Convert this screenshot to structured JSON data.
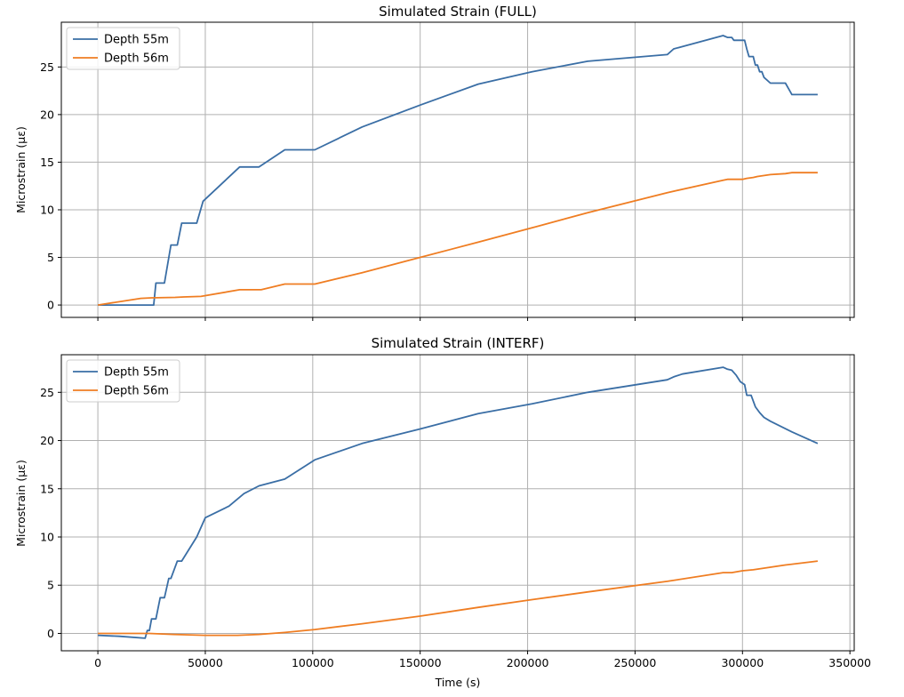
{
  "chart_data": [
    {
      "type": "line",
      "title": "Simulated Strain (FULL)",
      "xlabel": "",
      "ylabel": "Microstrain (με)",
      "xlim": [
        -17000,
        352000
      ],
      "ylim": [
        -1.3,
        29.7
      ],
      "xticks": [
        0,
        50000,
        100000,
        150000,
        200000,
        250000,
        300000,
        350000
      ],
      "yticks": [
        0,
        5,
        10,
        15,
        20,
        25
      ],
      "ytick_labels": [
        "0",
        "5",
        "10",
        "15",
        "20",
        "25"
      ],
      "xtick_labels": [],
      "grid": true,
      "legend": "top-left",
      "series": [
        {
          "name": "Depth 55m",
          "color": "#3a6ea5",
          "points": [
            [
              0,
              0
            ],
            [
              25000,
              0
            ],
            [
              26000,
              0
            ],
            [
              27000,
              2.3
            ],
            [
              31000,
              2.3
            ],
            [
              34000,
              6.3
            ],
            [
              37000,
              6.3
            ],
            [
              39000,
              8.6
            ],
            [
              46000,
              8.6
            ],
            [
              49000,
              10.9
            ],
            [
              66000,
              14.5
            ],
            [
              75000,
              14.5
            ],
            [
              87000,
              16.3
            ],
            [
              101000,
              16.3
            ],
            [
              123000,
              18.7
            ],
            [
              150000,
              21
            ],
            [
              177000,
              23.2
            ],
            [
              202000,
              24.5
            ],
            [
              228000,
              25.6
            ],
            [
              265000,
              26.3
            ],
            [
              268000,
              26.9
            ],
            [
              291000,
              28.3
            ],
            [
              293000,
              28.1
            ],
            [
              295000,
              28.1
            ],
            [
              296000,
              27.8
            ],
            [
              301000,
              27.8
            ],
            [
              302000,
              26.9
            ],
            [
              303000,
              26.1
            ],
            [
              305000,
              26.1
            ],
            [
              306000,
              25.2
            ],
            [
              307000,
              25.2
            ],
            [
              308000,
              24.5
            ],
            [
              309000,
              24.5
            ],
            [
              310000,
              23.9
            ],
            [
              313000,
              23.3
            ],
            [
              320000,
              23.3
            ],
            [
              323000,
              22.1
            ],
            [
              335000,
              22.1
            ]
          ]
        },
        {
          "name": "Depth 56m",
          "color": "#ef7d22",
          "points": [
            [
              0,
              0
            ],
            [
              20000,
              0.7
            ],
            [
              25000,
              0.75
            ],
            [
              36000,
              0.8
            ],
            [
              40000,
              0.85
            ],
            [
              48000,
              0.9
            ],
            [
              66000,
              1.6
            ],
            [
              76000,
              1.6
            ],
            [
              87000,
              2.2
            ],
            [
              101000,
              2.2
            ],
            [
              123000,
              3.4
            ],
            [
              150000,
              5
            ],
            [
              177000,
              6.6
            ],
            [
              202000,
              8.1
            ],
            [
              228000,
              9.7
            ],
            [
              265000,
              11.8
            ],
            [
              291000,
              13.1
            ],
            [
              293000,
              13.2
            ],
            [
              300000,
              13.2
            ],
            [
              302000,
              13.3
            ],
            [
              305000,
              13.4
            ],
            [
              307000,
              13.5
            ],
            [
              313000,
              13.7
            ],
            [
              320000,
              13.8
            ],
            [
              323000,
              13.9
            ],
            [
              335000,
              13.9
            ]
          ]
        }
      ]
    },
    {
      "type": "line",
      "title": "Simulated Strain (INTERF)",
      "xlabel": "Time (s)",
      "ylabel": "Microstrain (με)",
      "xlim": [
        -17000,
        352000
      ],
      "ylim": [
        -1.8,
        28.9
      ],
      "xticks": [
        0,
        50000,
        100000,
        150000,
        200000,
        250000,
        300000,
        350000
      ],
      "xtick_labels": [
        "0",
        "50000",
        "100000",
        "150000",
        "200000",
        "250000",
        "300000",
        "350000"
      ],
      "yticks": [
        0,
        5,
        10,
        15,
        20,
        25
      ],
      "ytick_labels": [
        "0",
        "5",
        "10",
        "15",
        "20",
        "25"
      ],
      "grid": true,
      "legend": "top-left",
      "series": [
        {
          "name": "Depth 55m",
          "color": "#3a6ea5",
          "points": [
            [
              0,
              -0.2
            ],
            [
              10000,
              -0.3
            ],
            [
              22000,
              -0.5
            ],
            [
              23000,
              0.3
            ],
            [
              24000,
              0.3
            ],
            [
              25000,
              1.5
            ],
            [
              27000,
              1.5
            ],
            [
              29000,
              3.7
            ],
            [
              31000,
              3.7
            ],
            [
              33000,
              5.7
            ],
            [
              34000,
              5.7
            ],
            [
              37000,
              7.5
            ],
            [
              39000,
              7.5
            ],
            [
              46000,
              10
            ],
            [
              50000,
              12
            ],
            [
              61000,
              13.2
            ],
            [
              68000,
              14.5
            ],
            [
              75000,
              15.3
            ],
            [
              87000,
              16
            ],
            [
              101000,
              18
            ],
            [
              123000,
              19.7
            ],
            [
              150000,
              21.2
            ],
            [
              177000,
              22.8
            ],
            [
              202000,
              23.8
            ],
            [
              228000,
              25
            ],
            [
              265000,
              26.3
            ],
            [
              268000,
              26.6
            ],
            [
              272000,
              26.9
            ],
            [
              291000,
              27.6
            ],
            [
              293000,
              27.4
            ],
            [
              295000,
              27.3
            ],
            [
              297000,
              26.8
            ],
            [
              299000,
              26.1
            ],
            [
              301000,
              25.8
            ],
            [
              302000,
              24.7
            ],
            [
              304000,
              24.7
            ],
            [
              306000,
              23.5
            ],
            [
              308000,
              22.9
            ],
            [
              310000,
              22.4
            ],
            [
              313000,
              22
            ],
            [
              323000,
              20.9
            ],
            [
              335000,
              19.7
            ]
          ]
        },
        {
          "name": "Depth 56m",
          "color": "#ef7d22",
          "points": [
            [
              0,
              0
            ],
            [
              24000,
              0
            ],
            [
              35000,
              -0.1
            ],
            [
              50000,
              -0.2
            ],
            [
              65000,
              -0.2
            ],
            [
              75000,
              -0.1
            ],
            [
              87000,
              0.1
            ],
            [
              101000,
              0.4
            ],
            [
              123000,
              1
            ],
            [
              150000,
              1.8
            ],
            [
              177000,
              2.7
            ],
            [
              202000,
              3.5
            ],
            [
              228000,
              4.3
            ],
            [
              265000,
              5.4
            ],
            [
              291000,
              6.3
            ],
            [
              295000,
              6.3
            ],
            [
              300000,
              6.5
            ],
            [
              305000,
              6.6
            ],
            [
              320000,
              7.1
            ],
            [
              335000,
              7.5
            ]
          ]
        }
      ]
    }
  ]
}
